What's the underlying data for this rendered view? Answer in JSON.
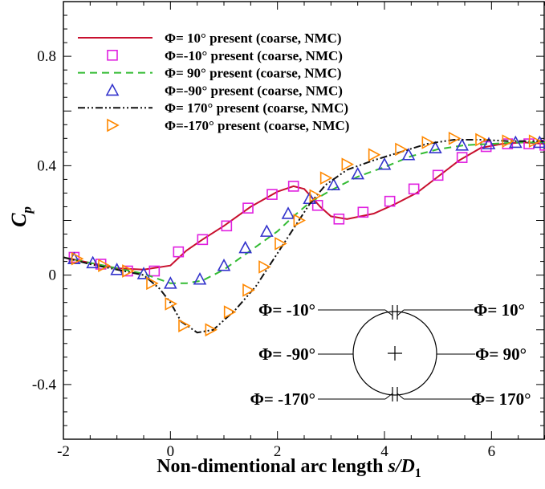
{
  "chart_data": {
    "type": "line",
    "xlabel": "Non-dimentional arc length s/D₁",
    "ylabel": "Cₚ",
    "xlabel_parts": {
      "prefix": "Non-dimentional arc length ",
      "var": "s/D",
      "sub": "1"
    },
    "ylabel_parts": {
      "var": "C",
      "sub": "p"
    },
    "xlim": [
      -2,
      7
    ],
    "ylim": [
      -0.6,
      1.0
    ],
    "xticks": [
      -2,
      0,
      2,
      4,
      6
    ],
    "yticks": [
      -0.4,
      0,
      0.4,
      0.8
    ],
    "xtick_labels": [
      "-2",
      "0",
      "2",
      "4",
      "6"
    ],
    "ytick_labels": [
      "-0.4",
      "0",
      "0.4",
      "0.8"
    ],
    "grid": false,
    "legend_position": "top-left",
    "series": [
      {
        "name": "Φ= 10° present (coarse, NMC)",
        "style": "solid-line",
        "color": "#c8102e",
        "points": [
          [
            -2,
            0.065
          ],
          [
            -1.5,
            0.045
          ],
          [
            -1,
            0.025
          ],
          [
            -0.5,
            0.02
          ],
          [
            0,
            0.035
          ],
          [
            0.3,
            0.09
          ],
          [
            0.6,
            0.13
          ],
          [
            1,
            0.18
          ],
          [
            1.5,
            0.25
          ],
          [
            2,
            0.305
          ],
          [
            2.3,
            0.325
          ],
          [
            2.5,
            0.315
          ],
          [
            2.8,
            0.25
          ],
          [
            3,
            0.215
          ],
          [
            3.3,
            0.205
          ],
          [
            3.8,
            0.225
          ],
          [
            4.2,
            0.26
          ],
          [
            4.6,
            0.3
          ],
          [
            5,
            0.36
          ],
          [
            5.4,
            0.42
          ],
          [
            5.8,
            0.465
          ],
          [
            6.2,
            0.48
          ],
          [
            6.6,
            0.485
          ],
          [
            7,
            0.48
          ]
        ]
      },
      {
        "name": "Φ=-10° present (coarse, NMC)",
        "style": "square-marker",
        "color": "#e020e0",
        "points": [
          [
            -1.8,
            0.065
          ],
          [
            -1.3,
            0.04
          ],
          [
            -0.8,
            0.015
          ],
          [
            -0.3,
            0.015
          ],
          [
            0.15,
            0.085
          ],
          [
            0.6,
            0.13
          ],
          [
            1.05,
            0.18
          ],
          [
            1.45,
            0.245
          ],
          [
            1.9,
            0.295
          ],
          [
            2.3,
            0.325
          ],
          [
            2.75,
            0.255
          ],
          [
            3.15,
            0.205
          ],
          [
            3.6,
            0.23
          ],
          [
            4.1,
            0.27
          ],
          [
            4.55,
            0.315
          ],
          [
            5,
            0.365
          ],
          [
            5.45,
            0.43
          ],
          [
            5.9,
            0.47
          ],
          [
            6.3,
            0.48
          ],
          [
            6.7,
            0.48
          ],
          [
            7,
            0.475
          ]
        ]
      },
      {
        "name": "Φ= 90° present (coarse, NMC)",
        "style": "dashed-line",
        "color": "#33bb33",
        "points": [
          [
            -2,
            0.065
          ],
          [
            -1.5,
            0.045
          ],
          [
            -1,
            0.025
          ],
          [
            -0.5,
            0.005
          ],
          [
            0,
            -0.03
          ],
          [
            0.3,
            -0.03
          ],
          [
            0.6,
            -0.02
          ],
          [
            1,
            0.02
          ],
          [
            1.5,
            0.09
          ],
          [
            2,
            0.16
          ],
          [
            2.3,
            0.215
          ],
          [
            2.6,
            0.265
          ],
          [
            3,
            0.31
          ],
          [
            3.5,
            0.36
          ],
          [
            4,
            0.395
          ],
          [
            4.5,
            0.435
          ],
          [
            5,
            0.46
          ],
          [
            5.5,
            0.475
          ],
          [
            6,
            0.48
          ],
          [
            6.5,
            0.485
          ],
          [
            7,
            0.485
          ]
        ]
      },
      {
        "name": "Φ=-90° present  (coarse, NMC)",
        "style": "triangle-up-marker",
        "color": "#3333cc",
        "points": [
          [
            -1.8,
            0.06
          ],
          [
            -1.45,
            0.045
          ],
          [
            -1,
            0.02
          ],
          [
            -0.5,
            0.005
          ],
          [
            0,
            -0.03
          ],
          [
            0.55,
            -0.015
          ],
          [
            1,
            0.035
          ],
          [
            1.4,
            0.1
          ],
          [
            1.8,
            0.16
          ],
          [
            2.2,
            0.225
          ],
          [
            2.6,
            0.28
          ],
          [
            3.05,
            0.33
          ],
          [
            3.5,
            0.37
          ],
          [
            4,
            0.405
          ],
          [
            4.45,
            0.44
          ],
          [
            4.95,
            0.465
          ],
          [
            5.45,
            0.475
          ],
          [
            5.95,
            0.48
          ],
          [
            6.45,
            0.485
          ],
          [
            6.9,
            0.485
          ]
        ]
      },
      {
        "name": "Φ= 170° present (coarse, NMC)",
        "style": "dashdotdot-line",
        "color": "#111111",
        "points": [
          [
            -2,
            0.065
          ],
          [
            -1.5,
            0.04
          ],
          [
            -1,
            0.02
          ],
          [
            -0.5,
            0.0
          ],
          [
            -0.2,
            -0.05
          ],
          [
            0,
            -0.1
          ],
          [
            0.2,
            -0.17
          ],
          [
            0.5,
            -0.21
          ],
          [
            0.8,
            -0.2
          ],
          [
            1.2,
            -0.13
          ],
          [
            1.6,
            -0.04
          ],
          [
            2,
            0.08
          ],
          [
            2.3,
            0.17
          ],
          [
            2.6,
            0.26
          ],
          [
            2.9,
            0.33
          ],
          [
            3.3,
            0.385
          ],
          [
            3.8,
            0.42
          ],
          [
            4.3,
            0.45
          ],
          [
            4.8,
            0.48
          ],
          [
            5.3,
            0.495
          ],
          [
            5.8,
            0.495
          ],
          [
            6.3,
            0.49
          ],
          [
            7,
            0.49
          ]
        ]
      },
      {
        "name": "Φ=-170° present (coarse, NMC)",
        "style": "triangle-right-marker",
        "color": "#ff8800",
        "points": [
          [
            -1.75,
            0.06
          ],
          [
            -1.25,
            0.035
          ],
          [
            -0.8,
            0.015
          ],
          [
            -0.35,
            -0.03
          ],
          [
            0,
            -0.105
          ],
          [
            0.25,
            -0.185
          ],
          [
            0.75,
            -0.2
          ],
          [
            1.1,
            -0.135
          ],
          [
            1.45,
            -0.055
          ],
          [
            1.75,
            0.03
          ],
          [
            2.05,
            0.115
          ],
          [
            2.4,
            0.2
          ],
          [
            2.7,
            0.29
          ],
          [
            2.9,
            0.355
          ],
          [
            3.3,
            0.405
          ],
          [
            3.8,
            0.44
          ],
          [
            4.3,
            0.46
          ],
          [
            4.8,
            0.485
          ],
          [
            5.3,
            0.5
          ],
          [
            5.8,
            0.495
          ],
          [
            6.3,
            0.49
          ],
          [
            6.8,
            0.49
          ]
        ]
      }
    ],
    "inset": {
      "labels_left": [
        "Φ= -10°",
        "Φ= -90°",
        "Φ= -170°"
      ],
      "labels_right": [
        "Φ= 10°",
        "Φ= 90°",
        "Φ= 170°"
      ]
    }
  }
}
